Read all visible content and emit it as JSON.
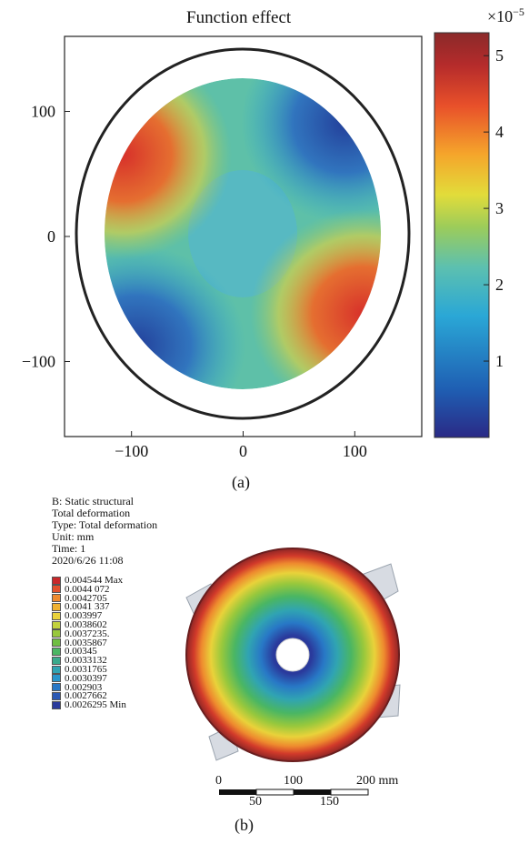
{
  "chart_data": [
    {
      "type": "heatmap",
      "panel_label": "(a)",
      "title": "Function effect",
      "x_ticks": [
        "−100",
        "0",
        "100"
      ],
      "x_tick_values": [
        -100,
        0,
        100
      ],
      "y_ticks": [
        "100",
        "0",
        "−100"
      ],
      "y_tick_values": [
        100,
        0,
        -100
      ],
      "xlim": [
        -160,
        160
      ],
      "ylim": [
        -160,
        160
      ],
      "colorbar": {
        "multiplier": "×10",
        "exponent": "−5",
        "ticks": [
          "5",
          "4",
          "3",
          "2",
          "1"
        ],
        "tick_values": [
          5,
          4,
          3,
          2,
          1
        ],
        "range": [
          0,
          5.3
        ],
        "colors": [
          "#2a2a86",
          "#1f5fb3",
          "#2aa7d6",
          "#5cc0b0",
          "#9ccc5a",
          "#e2dc3a",
          "#f5a52b",
          "#e8502a",
          "#b52b2b",
          "#8b2a2a"
        ]
      }
    },
    {
      "type": "heatmap",
      "panel_label": "(b)",
      "info": [
        "B: Static structural",
        "Total deformation",
        "Type: Total deformation",
        "Unit: mm",
        "Time: 1",
        "2020/6/26 11:08"
      ],
      "legend": [
        {
          "label": "0.004544 Max",
          "color": "#c8282a"
        },
        {
          "label": "0.0044 072",
          "color": "#e2502c"
        },
        {
          "label": "0.0042705",
          "color": "#ee8a2e"
        },
        {
          "label": "0.0041 337",
          "color": "#f0b232"
        },
        {
          "label": "0.003997",
          "color": "#e9d23a"
        },
        {
          "label": "0.0038602",
          "color": "#c2d23c"
        },
        {
          "label": "0.0037235.",
          "color": "#98c83c"
        },
        {
          "label": "0.0035867",
          "color": "#6fbe42"
        },
        {
          "label": "0.00345",
          "color": "#4ab663"
        },
        {
          "label": "0.0033132",
          "color": "#3aaa8c"
        },
        {
          "label": "0.0031765",
          "color": "#30a4b2"
        },
        {
          "label": "0.0030397",
          "color": "#2896cc"
        },
        {
          "label": "0.002903",
          "color": "#2878c6"
        },
        {
          "label": "0.0027662",
          "color": "#2a58b4"
        },
        {
          "label": "0.0026295 Min",
          "color": "#2a3a9c"
        }
      ],
      "scale_bar": {
        "top_labels": [
          "0",
          "100",
          "200 mm"
        ],
        "bottom_labels": [
          "50",
          "150"
        ]
      }
    }
  ]
}
